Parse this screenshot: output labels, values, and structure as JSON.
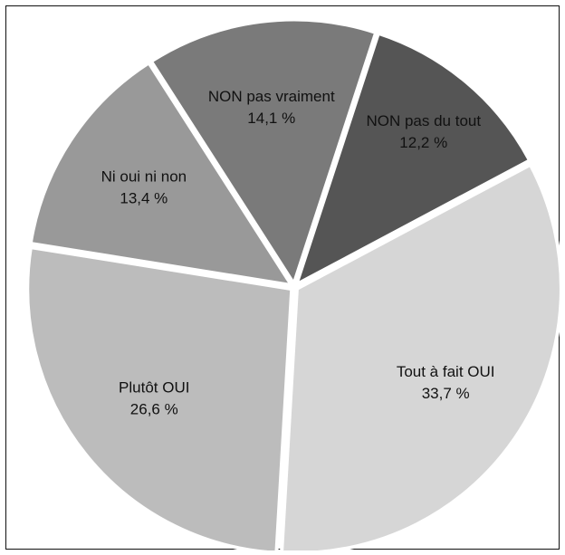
{
  "chart_data": {
    "type": "pie",
    "title": "",
    "slices": [
      {
        "label": "Tout à fait OUI",
        "value_label": "33,7 %",
        "value": 33.7,
        "color": "#d6d6d6"
      },
      {
        "label": "Plutôt OUI",
        "value_label": "26,6 %",
        "value": 26.6,
        "color": "#bcbcbc"
      },
      {
        "label": "Ni oui ni non",
        "value_label": "13,4 %",
        "value": 13.4,
        "color": "#999999"
      },
      {
        "label": "NON pas vraiment",
        "value_label": "14,1 %",
        "value": 14.1,
        "color": "#7a7a7a"
      },
      {
        "label": "NON pas du tout",
        "value_label": "12,2 %",
        "value": 12.2,
        "color": "#555555"
      }
    ],
    "start_angle_deg": -28,
    "direction": "clockwise",
    "legend": "none"
  }
}
